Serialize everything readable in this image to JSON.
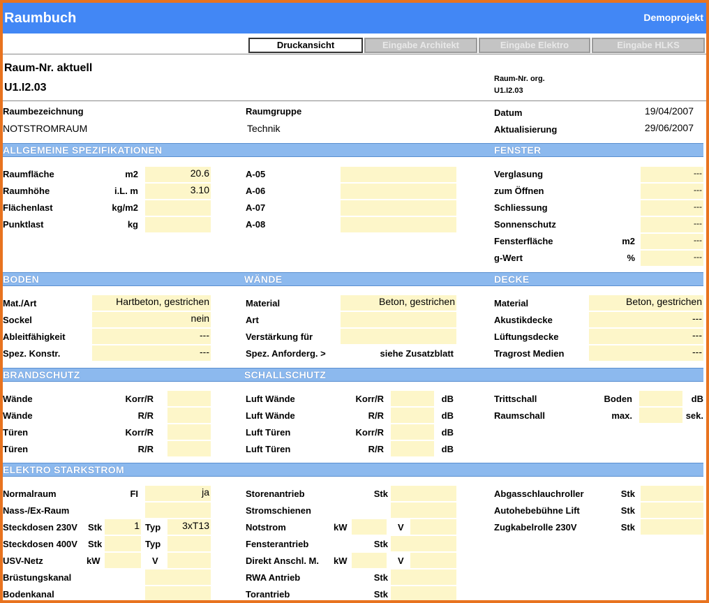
{
  "header": {
    "title": "Raumbuch",
    "project": "Demoprojekt"
  },
  "tabs": [
    "Druckansicht",
    "Eingabe Architekt",
    "Eingabe Elektro",
    "Eingabe HLKS"
  ],
  "room": {
    "heading": "Raum-Nr. aktuell",
    "nr": "U1.I2.03",
    "org_label": "Raum-Nr. org.",
    "org_value": "U1.I2.03"
  },
  "info": {
    "bez_label": "Raumbezeichnung",
    "bez_value": "NOTSTROMRAUM",
    "gruppe_label": "Raumgruppe",
    "gruppe_value": "Technik",
    "datum_label": "Datum",
    "datum_value": "19/04/2007",
    "akt_label": "Aktualisierung",
    "akt_value": "29/06/2007"
  },
  "sections": {
    "allg": "ALLGEMEINE SPEZIFIKATIONEN",
    "fenster": "FENSTER",
    "boden": "BODEN",
    "waende": "WÄNDE",
    "decke": "DECKE",
    "brand": "BRANDSCHUTZ",
    "schall": "SCHALLSCHUTZ",
    "elektro": "ELEKTRO STARKSTROM"
  },
  "allg": [
    {
      "label": "Raumfläche",
      "unit": "m2",
      "value": "20.6"
    },
    {
      "label": "Raumhöhe",
      "unit": "i.L. m",
      "value": "3.10"
    },
    {
      "label": "Flächenlast",
      "unit": "kg/m2",
      "value": ""
    },
    {
      "label": "Punktlast",
      "unit": "kg",
      "value": ""
    }
  ],
  "a_codes": [
    "A-05",
    "A-06",
    "A-07",
    "A-08"
  ],
  "fenster": [
    {
      "label": "Verglasung",
      "unit": "",
      "value": "---"
    },
    {
      "label": "zum Öffnen",
      "unit": "",
      "value": "---"
    },
    {
      "label": "Schliessung",
      "unit": "",
      "value": "---"
    },
    {
      "label": "Sonnenschutz",
      "unit": "",
      "value": "---"
    },
    {
      "label": "Fensterfläche",
      "unit": "m2",
      "value": "---"
    },
    {
      "label": "g-Wert",
      "unit": "%",
      "value": "---"
    }
  ],
  "boden": [
    {
      "label": "Mat./Art",
      "value": "Hartbeton, gestrichen"
    },
    {
      "label": "Sockel",
      "value": "nein"
    },
    {
      "label": "Ableitfähigkeit",
      "value": "---"
    },
    {
      "label": "Spez. Konstr.",
      "value": "---"
    }
  ],
  "waende": [
    {
      "label": "Material",
      "value": "Beton, gestrichen"
    },
    {
      "label": "Art",
      "value": ""
    },
    {
      "label": "Verstärkung für",
      "value": ""
    },
    {
      "label": "Spez. Anforderg. >",
      "value": "siehe Zusatzblatt"
    }
  ],
  "decke": [
    {
      "label": "Material",
      "value": "Beton, gestrichen"
    },
    {
      "label": "Akustikdecke",
      "value": "---"
    },
    {
      "label": "Lüftungsdecke",
      "value": "---"
    },
    {
      "label": "Tragrost Medien",
      "value": "---"
    }
  ],
  "brand": [
    {
      "label": "Wände",
      "unit": "Korr/R"
    },
    {
      "label": "Wände",
      "unit": "R/R"
    },
    {
      "label": "Türen",
      "unit": "Korr/R"
    },
    {
      "label": "Türen",
      "unit": "R/R"
    }
  ],
  "schall": [
    {
      "label": "Luft Wände",
      "unit": "Korr/R",
      "db": "dB"
    },
    {
      "label": "Luft Wände",
      "unit": "R/R",
      "db": "dB"
    },
    {
      "label": "Luft Türen",
      "unit": "Korr/R",
      "db": "dB"
    },
    {
      "label": "Luft Türen",
      "unit": "R/R",
      "db": "dB"
    }
  ],
  "schall_right": [
    {
      "label": "Trittschall",
      "sub": "Boden",
      "unit": "dB"
    },
    {
      "label": "Raumschall",
      "sub": "max.",
      "unit": "sek."
    }
  ],
  "elektro_left": [
    {
      "label": "Normalraum",
      "u1": "FI",
      "v1": "",
      "u2": "",
      "v2": "ja"
    },
    {
      "label": "Nass-/Ex-Raum",
      "u1": "",
      "v1": "",
      "u2": "",
      "v2": ""
    },
    {
      "label": "Steckdosen 230V",
      "u1": "Stk",
      "v1": "1",
      "u2": "Typ",
      "v2": "3xT13"
    },
    {
      "label": "Steckdosen 400V",
      "u1": "Stk",
      "v1": "",
      "u2": "Typ",
      "v2": ""
    },
    {
      "label": "USV-Netz",
      "u1": "kW",
      "v1": "",
      "u2": "V",
      "v2": ""
    },
    {
      "label": "Brüstungskanal",
      "u1": "",
      "v1": "",
      "u2": "",
      "v2": ""
    },
    {
      "label": "Bodenkanal",
      "u1": "",
      "v1": "",
      "u2": "",
      "v2": ""
    }
  ],
  "elektro_mid": [
    {
      "label": "Storenantrieb",
      "u1": "",
      "u2": "Stk"
    },
    {
      "label": "Stromschienen",
      "u1": "",
      "u2": ""
    },
    {
      "label": "Notstrom",
      "u1": "kW",
      "u2": "V"
    },
    {
      "label": "Fensterantrieb",
      "u1": "",
      "u2": "Stk"
    },
    {
      "label": "Direkt Anschl. M.",
      "u1": "kW",
      "u2": "V"
    },
    {
      "label": "RWA Antrieb",
      "u1": "",
      "u2": "Stk"
    },
    {
      "label": "Torantrieb",
      "u1": "",
      "u2": "Stk"
    }
  ],
  "elektro_right": [
    {
      "label": "Abgasschlauchroller",
      "unit": "Stk"
    },
    {
      "label": "Autohebebühne Lift",
      "unit": "Stk"
    },
    {
      "label": "Zugkabelrolle 230V",
      "unit": "Stk"
    }
  ],
  "colors": {
    "header": "#4287f5",
    "section": "#8cb9ee",
    "input": "#fdf6c9",
    "frame": "#e8731f"
  }
}
